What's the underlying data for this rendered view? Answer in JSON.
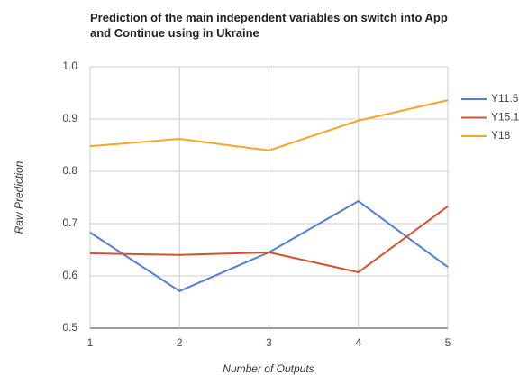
{
  "chart_data": {
    "type": "line",
    "title": "Prediction of the main independent variables on switch into App and Continue using in Ukraine",
    "x_label": "Number of Outputs",
    "y_label": "Raw Prediction",
    "x": [
      1,
      2,
      3,
      4,
      5
    ],
    "series": [
      {
        "name": "Y11.5",
        "color": "#4f7fdb",
        "values": [
          0.683,
          0.571,
          0.645,
          0.743,
          0.617
        ]
      },
      {
        "name": "Y15.1",
        "color": "#d9502c",
        "values": [
          0.643,
          0.64,
          0.645,
          0.607,
          0.733
        ]
      },
      {
        "name": "Y18",
        "color": "#f5a623",
        "values": [
          0.848,
          0.862,
          0.84,
          0.897,
          0.936
        ]
      }
    ],
    "xlim": [
      1,
      5
    ],
    "xticks": [
      1,
      2,
      3,
      4,
      5
    ],
    "ylim": [
      0.5,
      1
    ],
    "yticks": [
      0.5,
      0.6,
      0.7,
      0.8,
      0.9,
      {
        "value": 1,
        "label": "1.0"
      }
    ],
    "grid": true,
    "legend": "right"
  }
}
